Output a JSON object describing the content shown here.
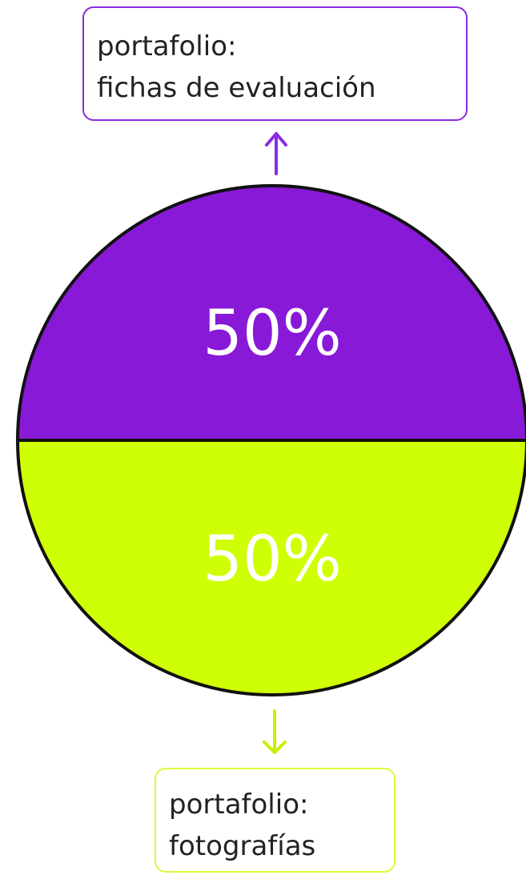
{
  "chart_data": {
    "type": "pie",
    "categories": [
      "portafolio: fichas de evaluación",
      "portafolio: fotografías"
    ],
    "values": [
      50,
      50
    ],
    "data_labels": [
      "50%",
      "50%"
    ],
    "colors": [
      "#8819d6",
      "#cfff05"
    ],
    "title": "",
    "legend": "none"
  },
  "labels": {
    "top": {
      "line1": "portafolio:",
      "line2": "fichas de evaluación",
      "color": "#8a2be2"
    },
    "bottom": {
      "line1": "portafolio:",
      "line2": "fotografías",
      "color": "#d6ff3a"
    }
  }
}
